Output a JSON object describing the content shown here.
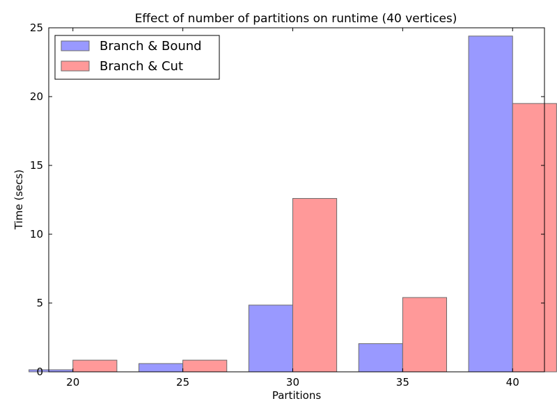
{
  "chart_data": {
    "type": "bar",
    "title": "Effect of number of partitions on runtime (40 vertices)",
    "xlabel": "Partitions",
    "ylabel": "Time (secs)",
    "categories": [
      "20",
      "25",
      "30",
      "35",
      "40"
    ],
    "ylim": [
      0,
      25
    ],
    "yticks": [
      "0",
      "5",
      "10",
      "15",
      "20",
      "25"
    ],
    "grid": false,
    "legend_position": "top-left",
    "series": [
      {
        "name": "Branch & Bound",
        "color": "#9999ff",
        "values": [
          0.15,
          0.6,
          4.85,
          2.05,
          24.4
        ]
      },
      {
        "name": "Branch & Cut",
        "color": "#ff9999",
        "values": [
          0.85,
          0.85,
          12.6,
          5.4,
          19.5
        ]
      }
    ]
  }
}
